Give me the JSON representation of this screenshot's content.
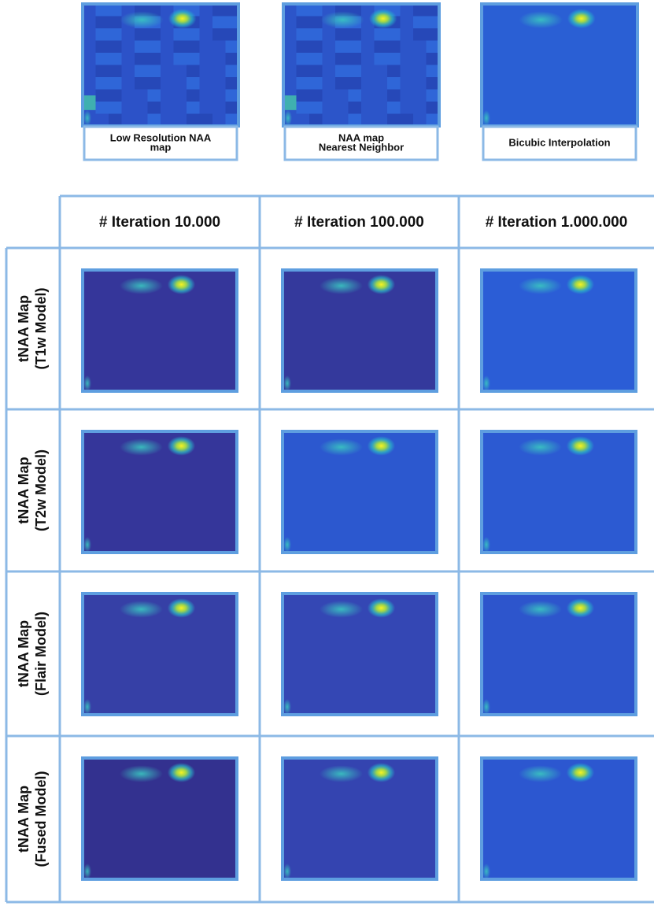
{
  "top_panels": [
    {
      "caption": [
        "Low Resolution NAA",
        "map"
      ]
    },
    {
      "caption": [
        "NAA map",
        "Nearest Neighbor"
      ]
    },
    {
      "caption": [
        "Bicubic Interpolation"
      ]
    }
  ],
  "table": {
    "columns": [
      "# Iteration 10.000",
      "# Iteration 100.000",
      "# Iteration 1.000.000"
    ],
    "rows": [
      {
        "label": [
          "tNAA Map",
          "(T1w Model)"
        ]
      },
      {
        "label": [
          "tNAA Map",
          "(T2w Model)"
        ]
      },
      {
        "label": [
          "tNAA Map",
          "(Flair Model)"
        ]
      },
      {
        "label": [
          "tNAA Map",
          "(Fused Model)"
        ]
      }
    ]
  }
}
